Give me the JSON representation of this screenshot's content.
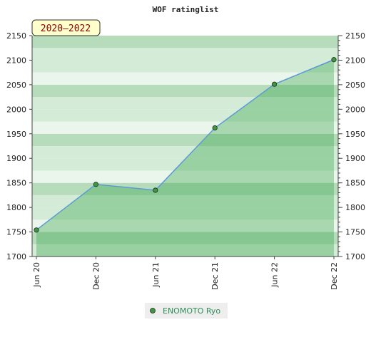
{
  "chart_data": {
    "type": "area",
    "title": "WOF ratinglist",
    "badge": "2020–2022",
    "xlabel": "",
    "ylabel": "",
    "x_ticks": [
      "Jun 20",
      "Dec 20",
      "Jun 21",
      "Dec 21",
      "Jun 22",
      "Dec 22"
    ],
    "ylim": [
      1700,
      2150
    ],
    "y_ticks": [
      1700,
      1750,
      1800,
      1850,
      1900,
      1950,
      2000,
      2050,
      2100,
      2150
    ],
    "series": [
      {
        "name": "ENOMOTO Ryo",
        "x": [
          "2020-06",
          "2020-12",
          "2021-06",
          "2021-12",
          "2022-06",
          "2022-12"
        ],
        "values": [
          1754,
          1847,
          1835,
          1962,
          2051,
          2101
        ],
        "color": "#3c9a3c",
        "line_color": "#5b9bd5"
      }
    ],
    "legend": "bottom-center",
    "grid": true,
    "colors": {
      "area": "#2ea043",
      "band_light": "#eaf5ec",
      "band_mid": "#d4ebd8",
      "band_dark": "#b6dcbc",
      "badge_bg": "#ffffcc"
    }
  }
}
